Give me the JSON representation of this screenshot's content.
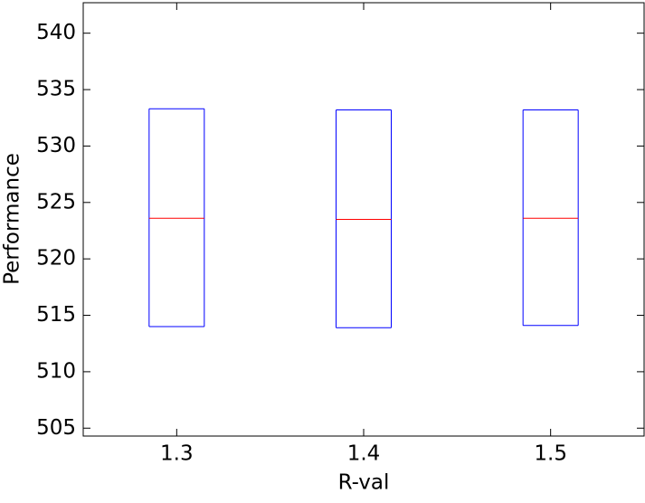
{
  "chart_data": {
    "type": "box",
    "xlabel": "R-val",
    "ylabel": "Performance",
    "categories": [
      "1.3",
      "1.4",
      "1.5"
    ],
    "boxes": [
      {
        "q1": 514.0,
        "median": 523.6,
        "q3": 533.3
      },
      {
        "q1": 513.9,
        "median": 523.5,
        "q3": 533.2
      },
      {
        "q1": 514.1,
        "median": 523.6,
        "q3": 533.2
      }
    ],
    "box_color": "#0000ff",
    "median_color": "#ff0000",
    "ylim": [
      504.3,
      542.7
    ],
    "yticks": [
      505,
      510,
      515,
      520,
      525,
      530,
      535,
      540
    ],
    "grid": false
  }
}
